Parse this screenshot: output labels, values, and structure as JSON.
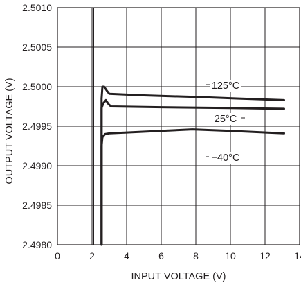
{
  "chart_data": {
    "type": "line",
    "title": "",
    "xlabel": "INPUT VOLTAGE (V)",
    "ylabel": "OUTPUT VOLTAGE (V)",
    "xlim": [
      0,
      14
    ],
    "ylim": [
      2.498,
      2.501
    ],
    "x_ticks": [
      "0",
      "2",
      "4",
      "6",
      "8",
      "10",
      "12",
      "14"
    ],
    "y_ticks": [
      "2.4980",
      "2.4985",
      "2.4990",
      "2.4995",
      "2.5000",
      "2.5005",
      "2.5010"
    ],
    "extra_vertical_grid_x": [
      2.1
    ],
    "grid": true,
    "legend": "inline labels",
    "series": [
      {
        "name": "125°C",
        "x": [
          2.55,
          2.55,
          2.6,
          2.7,
          2.85,
          3.0,
          5.0,
          8.0,
          10.5,
          13.1
        ],
        "y": [
          2.498,
          2.49985,
          2.5,
          2.5,
          2.49995,
          2.49991,
          2.49989,
          2.49987,
          2.49985,
          2.49983
        ]
      },
      {
        "name": "25°C",
        "x": [
          2.55,
          2.55,
          2.65,
          2.8,
          2.95,
          3.1,
          6.0,
          10.0,
          13.1
        ],
        "y": [
          2.498,
          2.49973,
          2.49979,
          2.49983,
          2.49978,
          2.49975,
          2.49974,
          2.49973,
          2.49972
        ]
      },
      {
        "name": "−40°C",
        "x": [
          2.55,
          2.55,
          2.6,
          2.75,
          3.0,
          4.0,
          6.0,
          7.8,
          10.0,
          13.1
        ],
        "y": [
          2.498,
          2.49925,
          2.49936,
          2.4994,
          2.49941,
          2.49942,
          2.49944,
          2.49946,
          2.49944,
          2.49941
        ]
      }
    ]
  }
}
